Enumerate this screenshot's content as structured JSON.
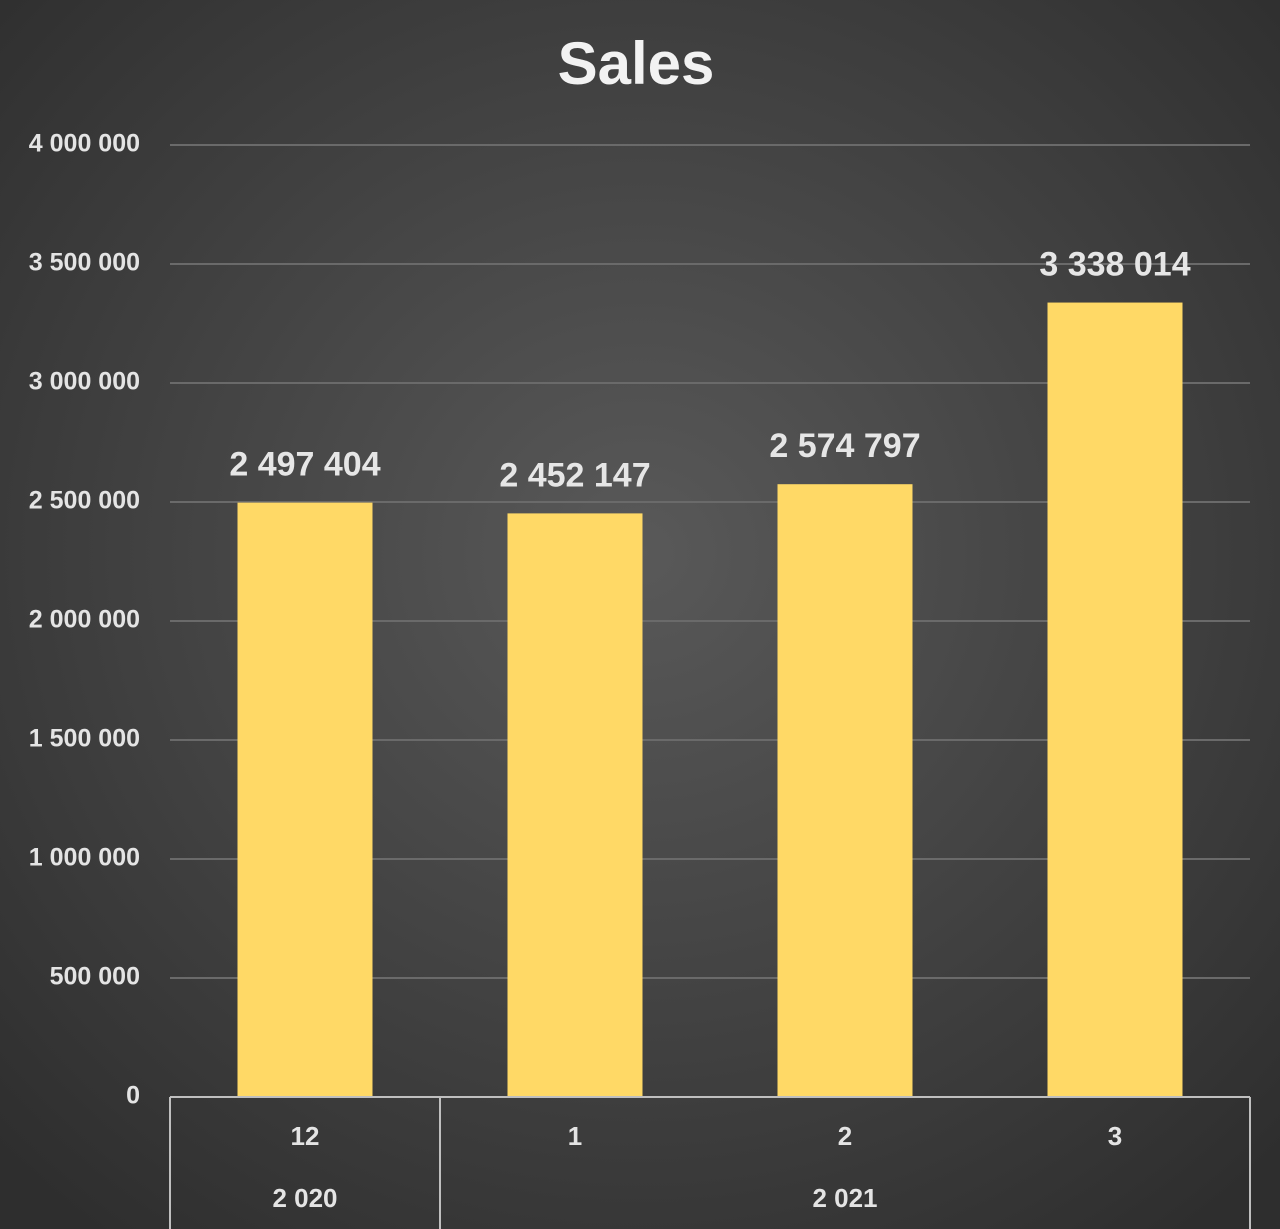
{
  "chart_data": {
    "type": "bar",
    "title": "Sales",
    "categories": [
      "12",
      "1",
      "2",
      "3"
    ],
    "groups": [
      {
        "name": "2 020",
        "count": 1
      },
      {
        "name": "2 021",
        "count": 3
      }
    ],
    "values": [
      2497404,
      2452147,
      2574797,
      3338014
    ],
    "value_labels": [
      "2 497 404",
      "2 452 147",
      "2 574 797",
      "3 338 014"
    ],
    "color": "#ffd966",
    "ylim": [
      0,
      4000000
    ],
    "yticks": [
      0,
      {
        "value": 500000,
        "label": "500 000"
      },
      {
        "value": 1000000,
        "label": "1 000 000"
      },
      {
        "value": 1500000,
        "label": "1 500 000"
      },
      {
        "value": 2000000,
        "label": "2 000 000"
      },
      {
        "value": 2500000,
        "label": "2 500 000"
      },
      {
        "value": 3000000,
        "label": "3 000 000"
      },
      {
        "value": 3500000,
        "label": "3 500 000"
      },
      {
        "value": 4000000,
        "label": "4 000 000"
      }
    ],
    "grid": true
  }
}
